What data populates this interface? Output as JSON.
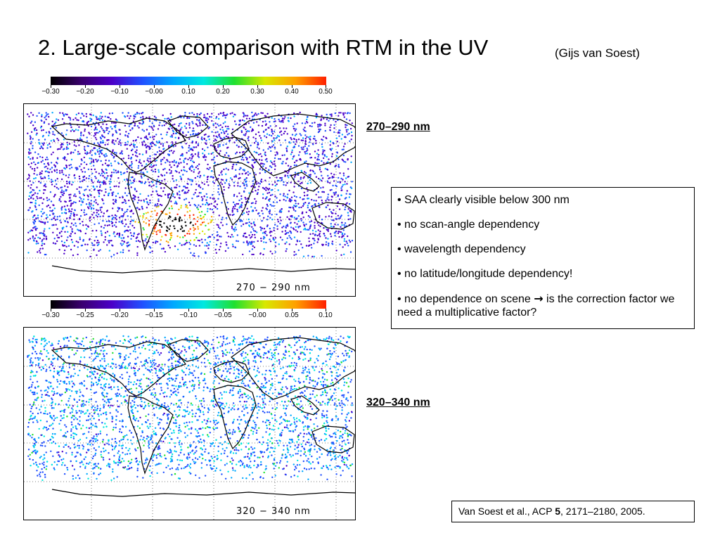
{
  "header": {
    "title": "2. Large-scale comparison with RTM in the UV",
    "subtitle": "(Gijs van Soest)"
  },
  "colorbar_top": {
    "ticks": [
      "−0.30",
      "−0.20",
      "−0.10",
      "−0.00",
      "0.10",
      "0.20",
      "0.30",
      "0.40",
      "0.50"
    ]
  },
  "colorbar_bottom": {
    "ticks": [
      "−0.30",
      "−0.25",
      "−0.20",
      "−0.15",
      "−0.10",
      "−0.05",
      "−0.00",
      "0.05",
      "0.10"
    ]
  },
  "palette": [
    "#000000",
    "#3a006e",
    "#4b00c8",
    "#2050ff",
    "#00a8ff",
    "#00e8e0",
    "#20e030",
    "#d8e800",
    "#ffa000",
    "#ff2000"
  ],
  "map_top": {
    "label": "270 − 290 nm"
  },
  "map_bottom": {
    "label": "320 − 340 nm"
  },
  "section_top": {
    "label": "270–290 nm"
  },
  "section_bottom": {
    "label": "320–340 nm"
  },
  "notes": {
    "items": [
      "• SAA clearly visible below 300 nm",
      "• no scan-angle dependency",
      "• wavelength dependency",
      "• no latitude/longitude dependency!"
    ],
    "last_before": "• no dependence on scene ",
    "arrow": "→",
    "last_after": " is the correction factor we need a multiplicative factor?"
  },
  "citation": {
    "before": "Van Soest et al., ACP ",
    "bold": "5",
    "after": ", 2171–2180, 2005."
  }
}
